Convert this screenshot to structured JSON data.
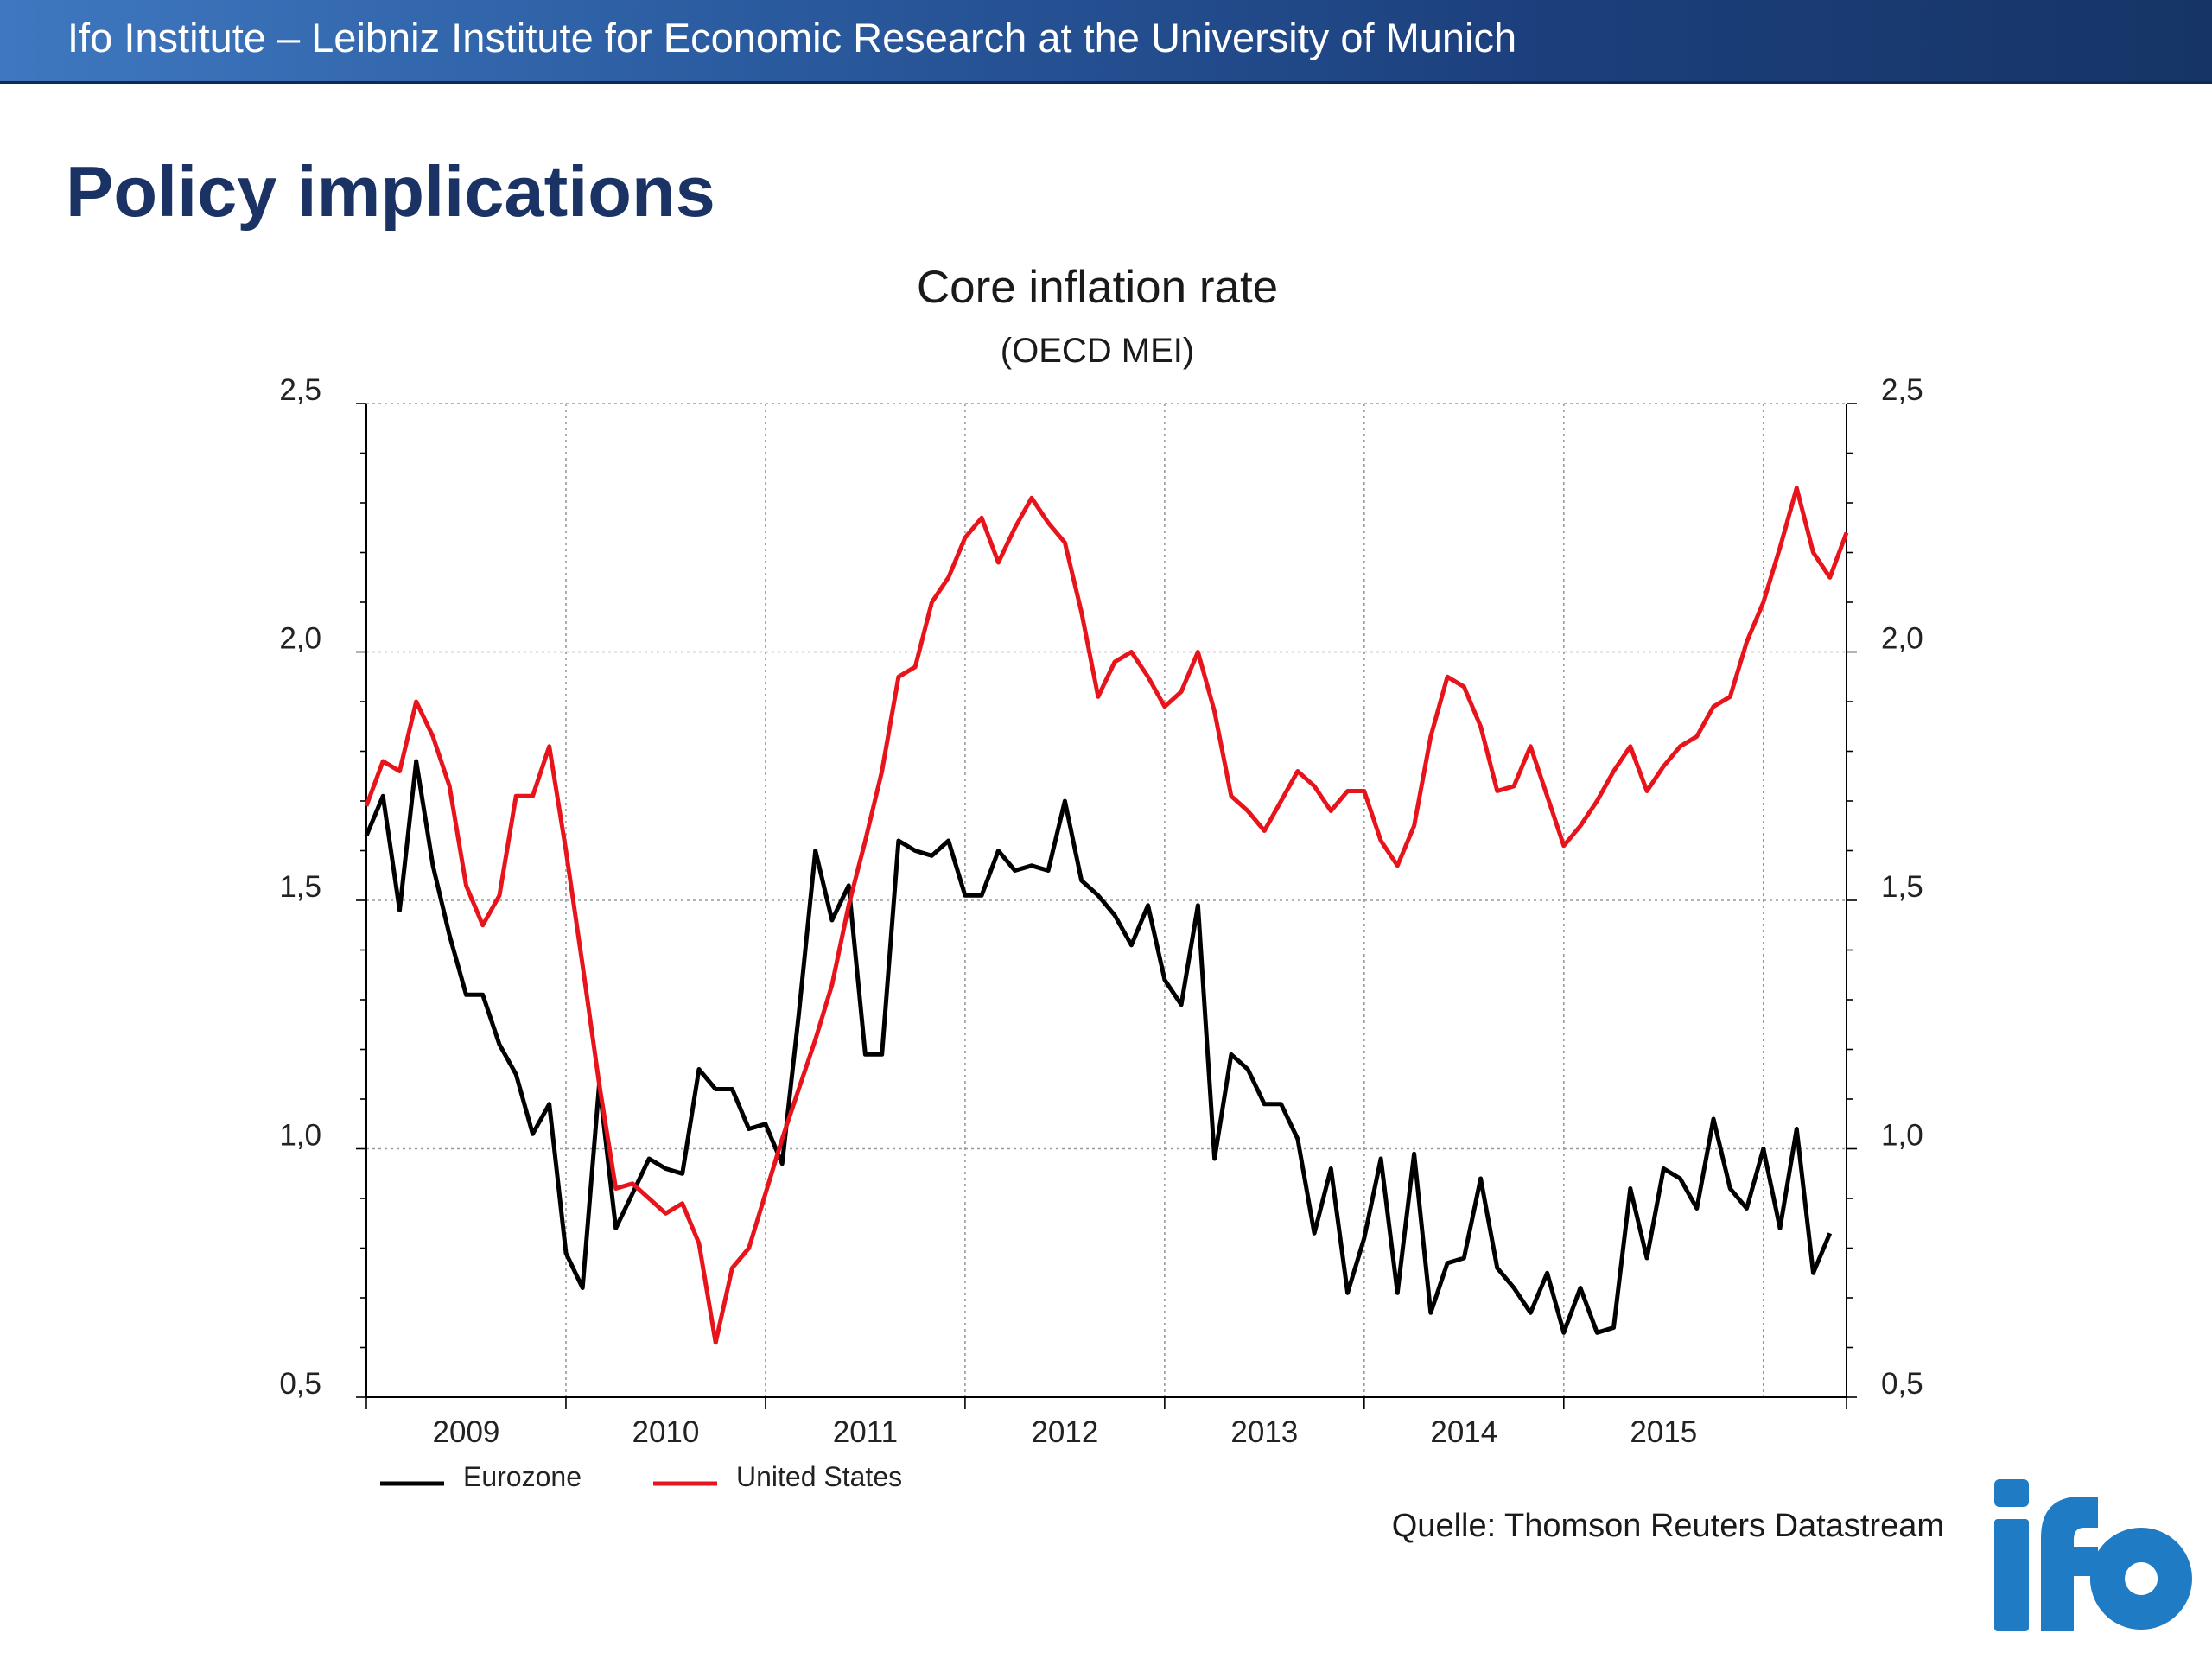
{
  "header": {
    "title": "Ifo Institute – Leibniz Institute for Economic Research at the University of Munich"
  },
  "page": {
    "title": "Policy implications"
  },
  "source_note": "Quelle: Thomson Reuters Datastream",
  "logo": {
    "text": "ifo",
    "color": "#1f7bc4"
  },
  "colors": {
    "header_start": "#3f78c0",
    "header_end": "#163566",
    "title": "#1a3364",
    "eurozone": "#000000",
    "united_states": "#e8141b"
  },
  "chart_data": {
    "type": "line",
    "title": "Core inflation rate",
    "subtitle": "(OECD MEI)",
    "xlabel": "",
    "ylabel": "",
    "x_start": "2009-01",
    "frequency": "monthly",
    "x_ticks": [
      "2009",
      "2010",
      "2011",
      "2012",
      "2013",
      "2014",
      "2015"
    ],
    "xlim": [
      "2009-01",
      "2016-06"
    ],
    "ylim": [
      0.5,
      2.5
    ],
    "y_ticks": [
      "0,5",
      "1,0",
      "1,5",
      "2,0",
      "2,5"
    ],
    "y_tick_values": [
      0.5,
      1.0,
      1.5,
      2.0,
      2.5
    ],
    "y_axes": "left and right",
    "grid": true,
    "legend": "bottom-left",
    "series": [
      {
        "name": "Eurozone",
        "color": "#000000",
        "values": [
          1.63,
          1.71,
          1.48,
          1.78,
          1.57,
          1.43,
          1.31,
          1.31,
          1.21,
          1.15,
          1.03,
          1.09,
          0.79,
          0.72,
          1.13,
          0.84,
          0.91,
          0.98,
          0.96,
          0.95,
          1.16,
          1.12,
          1.12,
          1.04,
          1.05,
          0.97,
          1.27,
          1.6,
          1.46,
          1.53,
          1.19,
          1.19,
          1.62,
          1.6,
          1.59,
          1.62,
          1.51,
          1.51,
          1.6,
          1.56,
          1.57,
          1.56,
          1.7,
          1.54,
          1.51,
          1.47,
          1.41,
          1.49,
          1.34,
          1.29,
          1.49,
          0.98,
          1.19,
          1.16,
          1.09,
          1.09,
          1.02,
          0.83,
          0.96,
          0.71,
          0.82,
          0.98,
          0.71,
          0.99,
          0.67,
          0.77,
          0.78,
          0.94,
          0.76,
          0.72,
          0.67,
          0.75,
          0.63,
          0.72,
          0.63,
          0.64,
          0.92,
          0.78,
          0.96,
          0.94,
          0.88,
          1.06,
          0.92,
          0.88,
          1.0,
          0.84,
          1.04,
          0.75,
          0.83
        ]
      },
      {
        "name": "United States",
        "color": "#e8141b",
        "values": [
          1.69,
          1.78,
          1.76,
          1.9,
          1.83,
          1.73,
          1.53,
          1.45,
          1.51,
          1.71,
          1.71,
          1.81,
          1.6,
          1.37,
          1.13,
          0.92,
          0.93,
          0.9,
          0.87,
          0.89,
          0.81,
          0.61,
          0.76,
          0.8,
          0.91,
          1.02,
          1.12,
          1.22,
          1.33,
          1.49,
          1.62,
          1.76,
          1.95,
          1.97,
          2.1,
          2.15,
          2.23,
          2.27,
          2.18,
          2.25,
          2.31,
          2.26,
          2.22,
          2.08,
          1.91,
          1.98,
          2.0,
          1.95,
          1.89,
          1.92,
          2.0,
          1.88,
          1.71,
          1.68,
          1.64,
          1.7,
          1.76,
          1.73,
          1.68,
          1.72,
          1.72,
          1.62,
          1.57,
          1.65,
          1.83,
          1.95,
          1.93,
          1.85,
          1.72,
          1.73,
          1.81,
          1.71,
          1.61,
          1.65,
          1.7,
          1.76,
          1.81,
          1.72,
          1.77,
          1.81,
          1.83,
          1.89,
          1.91,
          2.02,
          2.1,
          2.21,
          2.33,
          2.2,
          2.15,
          2.24
        ]
      }
    ]
  }
}
